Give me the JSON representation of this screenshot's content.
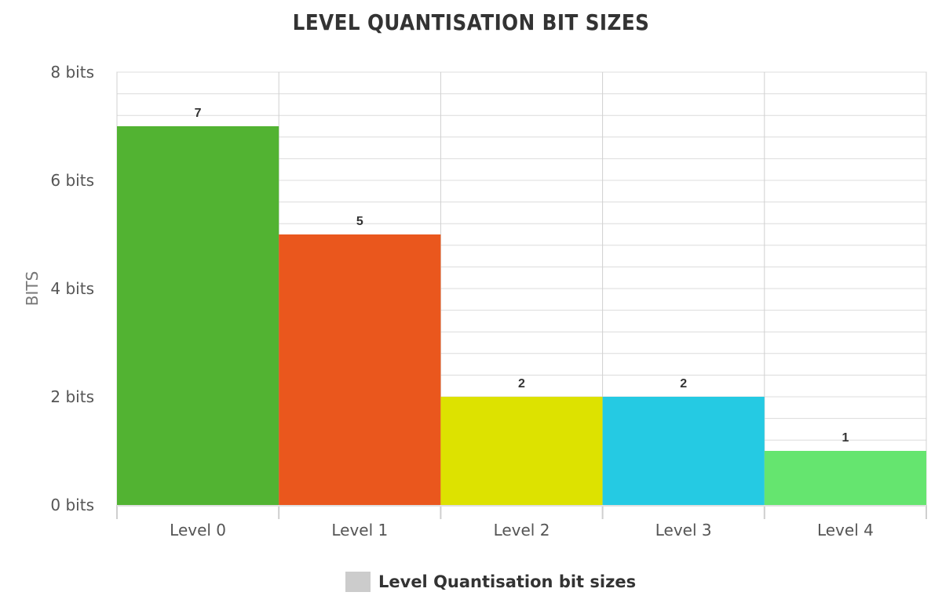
{
  "chart_data": {
    "type": "bar",
    "title": "LEVEL QUANTISATION BIT SIZES",
    "ylabel": "BITS",
    "xlabel": "",
    "categories": [
      "Level 0",
      "Level 1",
      "Level 2",
      "Level 3",
      "Level 4"
    ],
    "series": [
      {
        "name": "Level Quantisation bit sizes",
        "values": [
          7,
          5,
          2,
          2,
          1
        ]
      }
    ],
    "data_labels": [
      "7",
      "5",
      "2",
      "2",
      "1"
    ],
    "bar_colors": [
      "#52b332",
      "#ea571d",
      "#dde200",
      "#25cae3",
      "#65e56f"
    ],
    "ylim": [
      0,
      8
    ],
    "yticks": [
      0,
      2,
      4,
      6,
      8
    ],
    "ytick_labels": [
      "0 bits",
      "2 bits",
      "4 bits",
      "6 bits",
      "8 bits"
    ],
    "grid": true,
    "legend": {
      "position": "bottom",
      "label": "Level Quantisation bit sizes",
      "swatch_color": "#cccccc"
    }
  }
}
